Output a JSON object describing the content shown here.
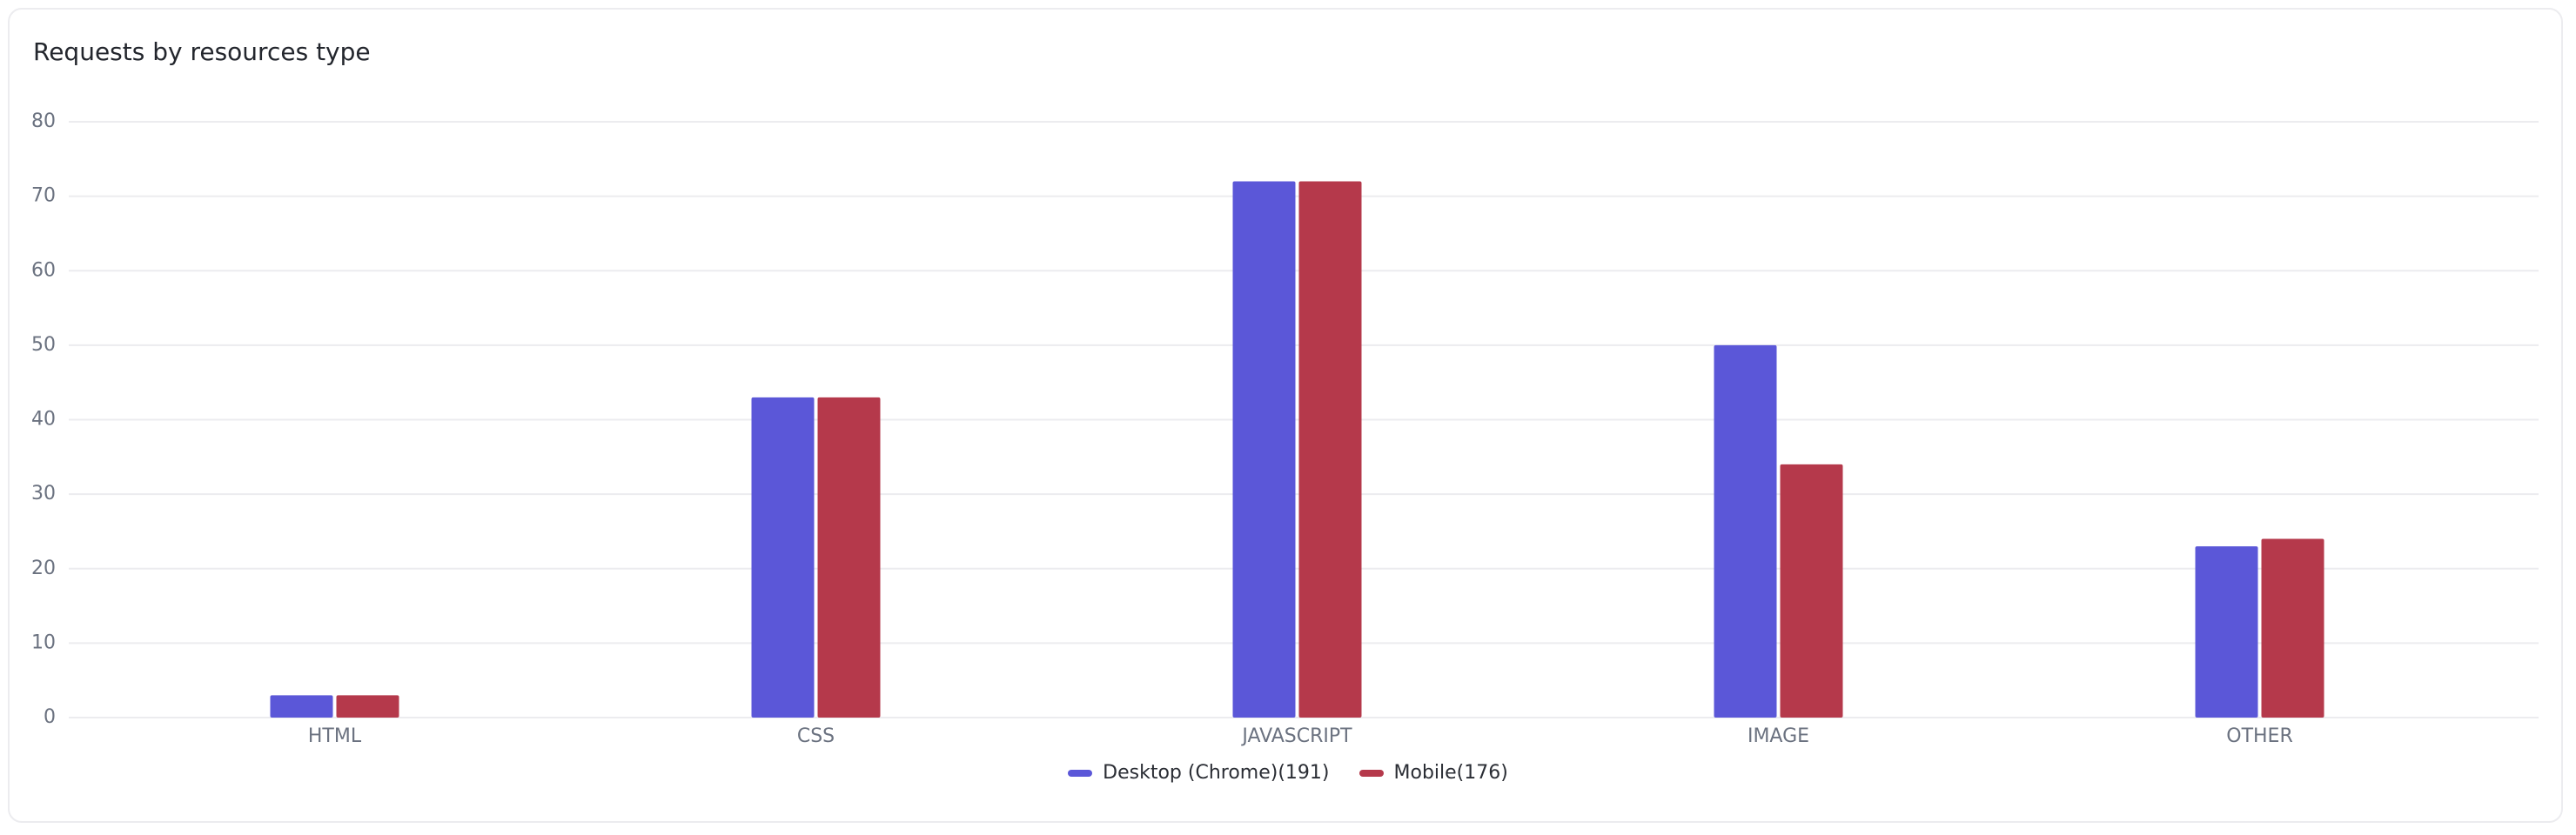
{
  "chart_data": {
    "type": "bar",
    "title": "Requests by resources type",
    "categories": [
      "HTML",
      "CSS",
      "JAVASCRIPT",
      "IMAGE",
      "OTHER"
    ],
    "series": [
      {
        "name": "Desktop (Chrome)(191)",
        "color": "#5b57d8",
        "values": [
          3,
          43,
          72,
          50,
          23
        ]
      },
      {
        "name": "Mobile(176)",
        "color": "#b5394b",
        "values": [
          3,
          43,
          72,
          34,
          24
        ]
      }
    ],
    "ylim": [
      0,
      80
    ],
    "yticks": [
      0,
      10,
      20,
      30,
      40,
      50,
      60,
      70,
      80
    ],
    "grid": true,
    "legend": "bottom"
  }
}
